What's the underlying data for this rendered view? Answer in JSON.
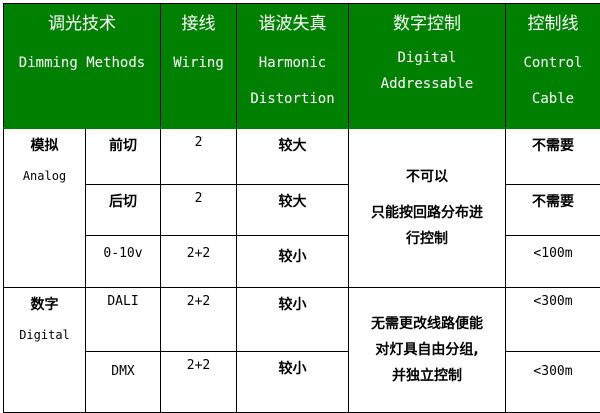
{
  "header": {
    "method": {
      "cn": "调光技术",
      "en": "Dimming Methods"
    },
    "wiring": {
      "cn": "接线",
      "en": "Wiring"
    },
    "harmonic": {
      "cn": "谐波失真",
      "en1": "Harmonic",
      "en2": "Distortion"
    },
    "digital": {
      "cn": "数字控制",
      "en1": "Digital",
      "en2": "Addressable"
    },
    "cable": {
      "cn": "控制线",
      "en1": "Control",
      "en2": "Cable"
    }
  },
  "groups": {
    "analog": {
      "cn": "模拟",
      "en": "Analog"
    },
    "digital": {
      "cn": "数字",
      "en": "Digital"
    }
  },
  "rows": [
    {
      "method": "前切",
      "wiring": "2",
      "harmonic": "较大",
      "cable": "不需要"
    },
    {
      "method": "后切",
      "wiring": "2",
      "harmonic": "较大",
      "cable": "不需要"
    },
    {
      "method": "0-10v",
      "wiring": "2+2",
      "harmonic": "较小",
      "cable": "<100m"
    },
    {
      "method": "DALI",
      "wiring": "2+2",
      "harmonic": "较小",
      "cable": "<300m"
    },
    {
      "method": "DMX",
      "wiring": "2+2",
      "harmonic": "较小",
      "cable": "<300m"
    }
  ],
  "analog_digital_control": {
    "line1": "不可以",
    "line2": "只能按回路分布进",
    "line3": "行控制"
  },
  "digital_digital_control": {
    "line1": "无需更改线路便能",
    "line2": "对灯具自由分组,",
    "line3": "并独立控制"
  },
  "colors": {
    "header_bg": "#008000",
    "header_text": "#ffffff"
  }
}
